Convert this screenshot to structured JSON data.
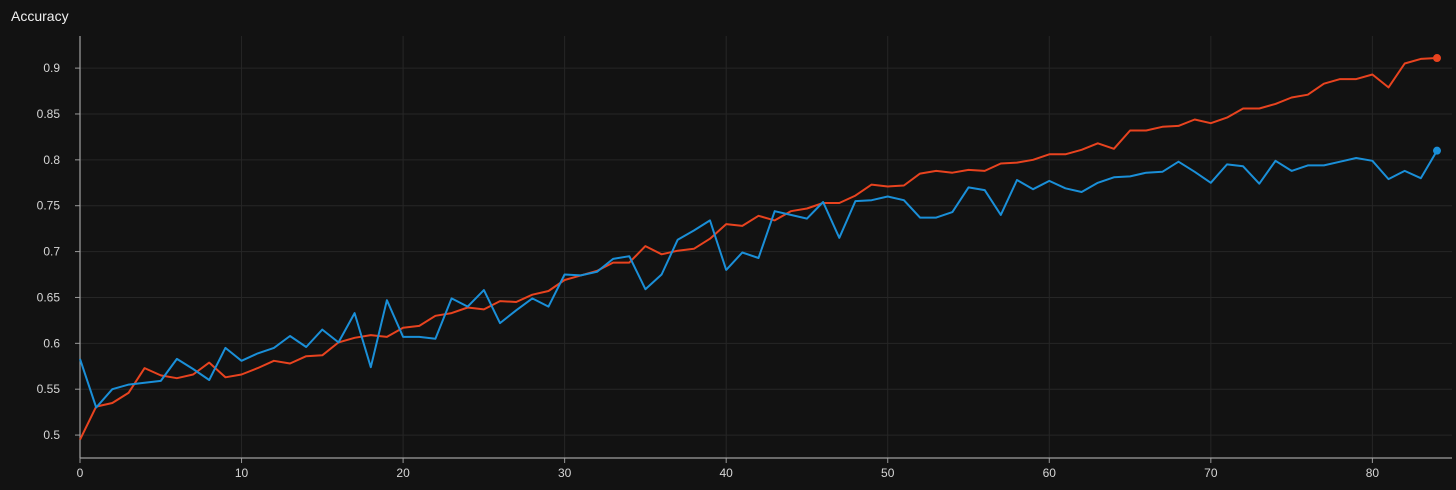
{
  "panel": {
    "title": "Accuracy"
  },
  "chart_data": {
    "type": "line",
    "title": "Accuracy",
    "xlabel": "",
    "ylabel": "",
    "xlim": [
      0,
      84
    ],
    "ylim": [
      0.475,
      0.935
    ],
    "xticks": [
      0,
      10,
      20,
      30,
      40,
      50,
      60,
      70,
      80
    ],
    "yticks": [
      0.5,
      0.55,
      0.6,
      0.65,
      0.7,
      0.75,
      0.8,
      0.85,
      0.9
    ],
    "ytick_labels": [
      "0.5",
      "0.55",
      "0.6",
      "0.65",
      "0.7",
      "0.75",
      "0.8",
      "0.85",
      "0.9"
    ],
    "grid": true,
    "x": [
      0,
      1,
      2,
      3,
      4,
      5,
      6,
      7,
      8,
      9,
      10,
      11,
      12,
      13,
      14,
      15,
      16,
      17,
      18,
      19,
      20,
      21,
      22,
      23,
      24,
      25,
      26,
      27,
      28,
      29,
      30,
      31,
      32,
      33,
      34,
      35,
      36,
      37,
      38,
      39,
      40,
      41,
      42,
      43,
      44,
      45,
      46,
      47,
      48,
      49,
      50,
      51,
      52,
      53,
      54,
      55,
      56,
      57,
      58,
      59,
      60,
      61,
      62,
      63,
      64,
      65,
      66,
      67,
      68,
      69,
      70,
      71,
      72,
      73,
      74,
      75,
      76,
      77,
      78,
      79,
      80,
      81,
      82,
      83,
      84
    ],
    "series": [
      {
        "color": "#e8431f",
        "values": [
          0.495,
          0.531,
          0.535,
          0.546,
          0.573,
          0.565,
          0.562,
          0.566,
          0.579,
          0.563,
          0.566,
          0.573,
          0.581,
          0.578,
          0.586,
          0.587,
          0.601,
          0.606,
          0.609,
          0.607,
          0.617,
          0.619,
          0.63,
          0.633,
          0.639,
          0.637,
          0.646,
          0.645,
          0.653,
          0.657,
          0.669,
          0.674,
          0.679,
          0.688,
          0.688,
          0.706,
          0.697,
          0.701,
          0.703,
          0.714,
          0.73,
          0.728,
          0.739,
          0.734,
          0.744,
          0.747,
          0.753,
          0.753,
          0.761,
          0.773,
          0.771,
          0.772,
          0.785,
          0.788,
          0.786,
          0.789,
          0.788,
          0.796,
          0.797,
          0.8,
          0.806,
          0.806,
          0.811,
          0.818,
          0.812,
          0.832,
          0.832,
          0.836,
          0.837,
          0.844,
          0.84,
          0.846,
          0.856,
          0.856,
          0.861,
          0.868,
          0.871,
          0.883,
          0.888,
          0.888,
          0.893,
          0.879,
          0.905,
          0.91,
          0.911
        ]
      },
      {
        "color": "#1a8fd8",
        "values": [
          0.583,
          0.53,
          0.55,
          0.555,
          0.557,
          0.559,
          0.583,
          0.572,
          0.56,
          0.595,
          0.581,
          0.589,
          0.595,
          0.608,
          0.596,
          0.615,
          0.601,
          0.633,
          0.574,
          0.647,
          0.607,
          0.607,
          0.605,
          0.649,
          0.64,
          0.658,
          0.622,
          0.636,
          0.649,
          0.64,
          0.675,
          0.674,
          0.678,
          0.692,
          0.695,
          0.659,
          0.675,
          0.713,
          0.723,
          0.734,
          0.68,
          0.699,
          0.693,
          0.744,
          0.74,
          0.736,
          0.754,
          0.715,
          0.755,
          0.756,
          0.76,
          0.756,
          0.737,
          0.737,
          0.743,
          0.77,
          0.767,
          0.74,
          0.778,
          0.768,
          0.777,
          0.769,
          0.765,
          0.775,
          0.781,
          0.782,
          0.786,
          0.787,
          0.798,
          0.787,
          0.775,
          0.795,
          0.793,
          0.774,
          0.799,
          0.788,
          0.794,
          0.794,
          0.798,
          0.802,
          0.799,
          0.779,
          0.788,
          0.78,
          0.81
        ]
      }
    ]
  }
}
